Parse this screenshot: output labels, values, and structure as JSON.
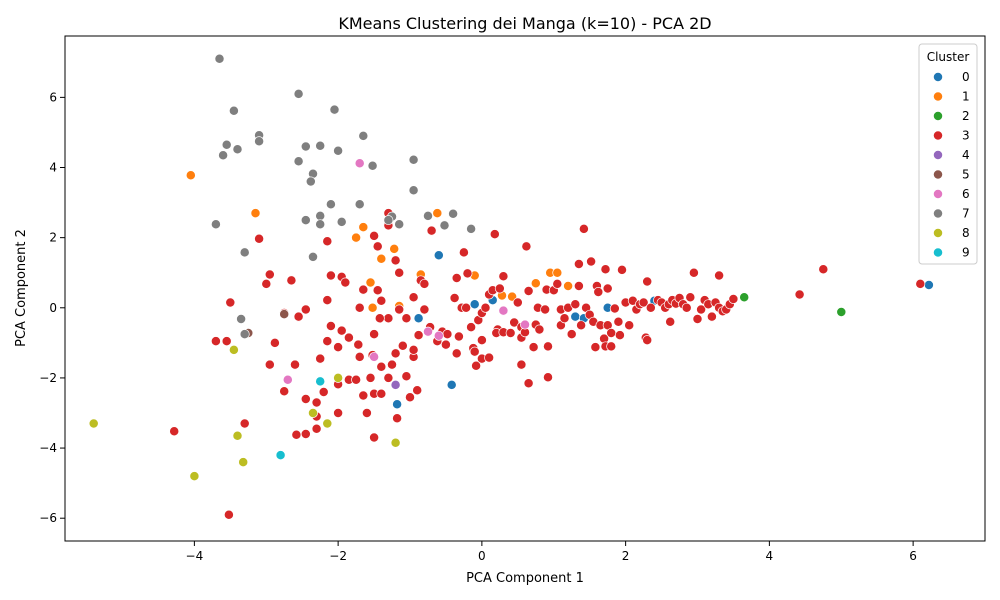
{
  "chart_data": {
    "type": "scatter",
    "title": "KMeans Clustering dei Manga (k=10) - PCA 2D",
    "xlabel": "PCA Component 1",
    "ylabel": "PCA Component 2",
    "xlim": [
      -5.8,
      7.0
    ],
    "ylim": [
      -6.65,
      7.75
    ],
    "xticks": [
      -4,
      -2,
      0,
      2,
      4,
      6
    ],
    "yticks": [
      -6,
      -4,
      -2,
      0,
      2,
      4,
      6
    ],
    "grid": false,
    "legend": {
      "title": "Cluster",
      "placement": "top-right"
    },
    "series": [
      {
        "name": "0",
        "color": "#1f77b4",
        "points": [
          [
            6.22,
            0.65
          ],
          [
            -0.6,
            1.5
          ],
          [
            -0.88,
            -0.3
          ],
          [
            -0.42,
            -2.2
          ],
          [
            -1.18,
            -2.75
          ],
          [
            0.15,
            0.22
          ],
          [
            1.3,
            -0.25
          ],
          [
            1.42,
            -0.3
          ],
          [
            2.4,
            0.2
          ],
          [
            1.75,
            0.0
          ],
          [
            -0.1,
            0.1
          ]
        ]
      },
      {
        "name": "1",
        "color": "#ff7f0e",
        "points": [
          [
            -4.05,
            3.78
          ],
          [
            -3.15,
            2.7
          ],
          [
            -1.65,
            2.3
          ],
          [
            -1.75,
            2.0
          ],
          [
            -1.4,
            1.4
          ],
          [
            -1.22,
            1.68
          ],
          [
            -0.62,
            2.7
          ],
          [
            -0.85,
            0.95
          ],
          [
            -1.55,
            0.72
          ],
          [
            -1.52,
            0.0
          ],
          [
            -1.15,
            0.05
          ],
          [
            -0.1,
            0.92
          ],
          [
            0.28,
            0.35
          ],
          [
            0.42,
            0.32
          ],
          [
            0.95,
            1.0
          ],
          [
            1.05,
            1.0
          ],
          [
            1.2,
            0.62
          ],
          [
            0.75,
            0.7
          ]
        ]
      },
      {
        "name": "2",
        "color": "#2ca02c",
        "points": [
          [
            5.0,
            -0.12
          ],
          [
            3.65,
            0.3
          ],
          [
            2.55,
            0.08
          ],
          [
            1.85,
            -0.02
          ]
        ]
      },
      {
        "name": "3",
        "color": "#d62728",
        "points": [
          [
            -3.1,
            1.97
          ],
          [
            -3.5,
            0.15
          ],
          [
            -2.95,
            0.95
          ],
          [
            -3.0,
            0.68
          ],
          [
            -2.65,
            0.78
          ],
          [
            -2.15,
            1.9
          ],
          [
            -2.1,
            0.92
          ],
          [
            -1.95,
            0.88
          ],
          [
            -1.9,
            0.72
          ],
          [
            -2.15,
            0.22
          ],
          [
            -2.45,
            -0.05
          ],
          [
            -2.55,
            -0.25
          ],
          [
            -2.75,
            -0.15
          ],
          [
            -3.55,
            -0.95
          ],
          [
            -3.7,
            -0.95
          ],
          [
            -2.88,
            -1.0
          ],
          [
            -2.95,
            -1.62
          ],
          [
            -2.6,
            -1.62
          ],
          [
            -2.25,
            -1.45
          ],
          [
            -2.1,
            -0.52
          ],
          [
            -1.95,
            -0.65
          ],
          [
            -2.15,
            -0.95
          ],
          [
            -2.0,
            -1.12
          ],
          [
            -1.85,
            -0.85
          ],
          [
            -1.72,
            -1.05
          ],
          [
            -1.7,
            -1.4
          ],
          [
            -1.85,
            -2.05
          ],
          [
            -1.75,
            -2.05
          ],
          [
            -1.65,
            -2.5
          ],
          [
            -1.5,
            -2.45
          ],
          [
            -1.6,
            -3.0
          ],
          [
            -1.5,
            -3.7
          ],
          [
            -2.0,
            -2.18
          ],
          [
            -2.0,
            -3.0
          ],
          [
            -2.2,
            -2.4
          ],
          [
            -2.3,
            -2.7
          ],
          [
            -2.3,
            -3.1
          ],
          [
            -2.3,
            -3.45
          ],
          [
            -2.45,
            -2.6
          ],
          [
            -2.45,
            -3.6
          ],
          [
            -2.58,
            -3.62
          ],
          [
            -2.75,
            -2.38
          ],
          [
            -3.3,
            -3.3
          ],
          [
            -4.28,
            -3.52
          ],
          [
            -3.52,
            -5.9
          ],
          [
            -1.4,
            -2.45
          ],
          [
            -1.3,
            -2.0
          ],
          [
            -1.25,
            -1.62
          ],
          [
            -1.2,
            -1.3
          ],
          [
            -1.18,
            -3.15
          ],
          [
            -1.0,
            -2.55
          ],
          [
            -0.9,
            -2.35
          ],
          [
            -1.05,
            -1.95
          ],
          [
            -0.95,
            -1.4
          ],
          [
            -0.95,
            -1.2
          ],
          [
            -1.1,
            -1.08
          ],
          [
            -1.15,
            -0.05
          ],
          [
            -1.05,
            -0.3
          ],
          [
            -0.95,
            0.3
          ],
          [
            -0.85,
            0.78
          ],
          [
            -0.8,
            0.68
          ],
          [
            -0.8,
            -0.05
          ],
          [
            -0.88,
            -0.78
          ],
          [
            -0.72,
            -0.55
          ],
          [
            -0.62,
            -0.95
          ],
          [
            -0.55,
            -0.68
          ],
          [
            -0.5,
            -1.05
          ],
          [
            -0.48,
            -0.75
          ],
          [
            -0.35,
            -1.3
          ],
          [
            -0.32,
            -0.82
          ],
          [
            -0.28,
            0.0
          ],
          [
            -0.22,
            0.0
          ],
          [
            -0.38,
            0.28
          ],
          [
            -0.35,
            0.85
          ],
          [
            -0.25,
            1.58
          ],
          [
            -0.2,
            0.98
          ],
          [
            -0.15,
            -0.55
          ],
          [
            -0.12,
            -1.15
          ],
          [
            -0.1,
            -1.25
          ],
          [
            -0.05,
            -0.35
          ],
          [
            0.0,
            -0.15
          ],
          [
            -0.08,
            -1.65
          ],
          [
            0.0,
            -1.45
          ],
          [
            0.0,
            -0.92
          ],
          [
            0.05,
            0.0
          ],
          [
            0.1,
            -1.42
          ],
          [
            0.1,
            0.38
          ],
          [
            0.15,
            0.5
          ],
          [
            0.18,
            2.1
          ],
          [
            0.22,
            -0.62
          ],
          [
            0.2,
            -0.72
          ],
          [
            0.25,
            0.55
          ],
          [
            0.3,
            0.9
          ],
          [
            0.3,
            -0.7
          ],
          [
            0.4,
            -0.72
          ],
          [
            0.45,
            -0.42
          ],
          [
            0.5,
            0.15
          ],
          [
            0.55,
            -0.55
          ],
          [
            0.55,
            -0.85
          ],
          [
            0.55,
            -1.62
          ],
          [
            0.6,
            -0.7
          ],
          [
            0.62,
            1.75
          ],
          [
            0.65,
            0.48
          ],
          [
            0.65,
            -2.15
          ],
          [
            0.72,
            -1.12
          ],
          [
            0.75,
            -0.48
          ],
          [
            0.78,
            0.0
          ],
          [
            0.8,
            -0.62
          ],
          [
            0.88,
            -0.05
          ],
          [
            0.9,
            0.52
          ],
          [
            0.92,
            -1.1
          ],
          [
            0.92,
            -1.98
          ],
          [
            1.0,
            0.5
          ],
          [
            1.05,
            0.68
          ],
          [
            1.1,
            -0.5
          ],
          [
            1.1,
            -0.05
          ],
          [
            1.15,
            -0.3
          ],
          [
            1.2,
            0.0
          ],
          [
            1.25,
            -0.75
          ],
          [
            1.3,
            0.1
          ],
          [
            1.35,
            1.25
          ],
          [
            1.35,
            0.62
          ],
          [
            1.38,
            -0.5
          ],
          [
            1.42,
            2.25
          ],
          [
            1.45,
            0.0
          ],
          [
            1.5,
            -0.2
          ],
          [
            1.52,
            1.32
          ],
          [
            1.55,
            -0.4
          ],
          [
            1.58,
            -1.12
          ],
          [
            1.6,
            0.62
          ],
          [
            1.62,
            0.45
          ],
          [
            1.65,
            -0.5
          ],
          [
            1.7,
            -0.88
          ],
          [
            1.72,
            1.1
          ],
          [
            1.72,
            -1.1
          ],
          [
            1.75,
            0.55
          ],
          [
            1.75,
            -0.5
          ],
          [
            1.8,
            -0.72
          ],
          [
            1.8,
            -1.1
          ],
          [
            1.85,
            -0.02
          ],
          [
            1.9,
            -0.4
          ],
          [
            1.92,
            -0.78
          ],
          [
            1.95,
            1.08
          ],
          [
            2.0,
            0.15
          ],
          [
            2.05,
            -0.5
          ],
          [
            2.1,
            0.2
          ],
          [
            2.15,
            -0.05
          ],
          [
            2.2,
            0.1
          ],
          [
            2.25,
            0.15
          ],
          [
            2.28,
            -0.85
          ],
          [
            2.3,
            0.75
          ],
          [
            2.3,
            -0.92
          ],
          [
            2.35,
            0.0
          ],
          [
            2.45,
            0.22
          ],
          [
            2.5,
            0.15
          ],
          [
            2.55,
            0.0
          ],
          [
            2.6,
            0.1
          ],
          [
            2.62,
            -0.4
          ],
          [
            2.65,
            0.22
          ],
          [
            2.7,
            0.12
          ],
          [
            2.75,
            0.28
          ],
          [
            2.8,
            0.1
          ],
          [
            2.85,
            0.0
          ],
          [
            2.9,
            0.3
          ],
          [
            2.95,
            1.0
          ],
          [
            3.0,
            -0.32
          ],
          [
            3.05,
            -0.05
          ],
          [
            3.1,
            0.22
          ],
          [
            3.15,
            0.1
          ],
          [
            3.2,
            -0.25
          ],
          [
            3.25,
            0.15
          ],
          [
            3.3,
            0.92
          ],
          [
            3.3,
            0.0
          ],
          [
            3.35,
            -0.1
          ],
          [
            3.4,
            -0.05
          ],
          [
            3.45,
            0.1
          ],
          [
            3.5,
            0.25
          ],
          [
            4.42,
            0.38
          ],
          [
            4.75,
            1.1
          ],
          [
            6.1,
            0.68
          ],
          [
            -1.3,
            2.7
          ],
          [
            -1.3,
            2.35
          ],
          [
            -1.5,
            2.05
          ],
          [
            -1.45,
            1.75
          ],
          [
            -1.2,
            1.35
          ],
          [
            -1.15,
            1.0
          ],
          [
            -1.4,
            0.2
          ],
          [
            -1.3,
            -0.3
          ],
          [
            -1.7,
            0.0
          ],
          [
            -1.65,
            0.52
          ],
          [
            -1.45,
            0.5
          ],
          [
            -1.42,
            -0.3
          ],
          [
            -1.5,
            -0.75
          ],
          [
            -1.52,
            -1.35
          ],
          [
            -1.4,
            -1.68
          ],
          [
            -1.55,
            -2.0
          ],
          [
            -0.7,
            2.2
          ]
        ]
      },
      {
        "name": "4",
        "color": "#9467bd",
        "points": [
          [
            -1.2,
            -2.2
          ]
        ]
      },
      {
        "name": "5",
        "color": "#8c564b",
        "points": [
          [
            -2.75,
            -0.18
          ],
          [
            -3.25,
            -0.72
          ]
        ]
      },
      {
        "name": "6",
        "color": "#e377c2",
        "points": [
          [
            -1.7,
            4.12
          ],
          [
            -2.7,
            -2.05
          ],
          [
            -1.5,
            -1.4
          ],
          [
            -0.75,
            -0.68
          ],
          [
            0.3,
            -0.08
          ],
          [
            0.6,
            -0.48
          ],
          [
            -0.6,
            -0.8
          ]
        ]
      },
      {
        "name": "7",
        "color": "#7f7f7f",
        "points": [
          [
            -3.65,
            7.1
          ],
          [
            -2.55,
            6.1
          ],
          [
            -3.45,
            5.62
          ],
          [
            -2.05,
            5.65
          ],
          [
            -3.55,
            4.65
          ],
          [
            -3.1,
            4.92
          ],
          [
            -3.1,
            4.75
          ],
          [
            -3.4,
            4.52
          ],
          [
            -3.6,
            4.35
          ],
          [
            -2.45,
            4.6
          ],
          [
            -2.25,
            4.62
          ],
          [
            -2.0,
            4.48
          ],
          [
            -2.55,
            4.18
          ],
          [
            -1.65,
            4.9
          ],
          [
            -1.52,
            4.05
          ],
          [
            -2.35,
            3.82
          ],
          [
            -2.38,
            3.6
          ],
          [
            -0.95,
            4.22
          ],
          [
            -0.95,
            3.35
          ],
          [
            -1.7,
            2.95
          ],
          [
            -2.1,
            2.95
          ],
          [
            -2.25,
            2.62
          ],
          [
            -2.45,
            2.5
          ],
          [
            -2.25,
            2.38
          ],
          [
            -1.95,
            2.45
          ],
          [
            -1.25,
            2.6
          ],
          [
            -1.3,
            2.5
          ],
          [
            -1.15,
            2.38
          ],
          [
            -0.75,
            2.62
          ],
          [
            -0.4,
            2.68
          ],
          [
            -0.52,
            2.35
          ],
          [
            -0.15,
            2.25
          ],
          [
            -3.7,
            2.38
          ],
          [
            -3.3,
            1.58
          ],
          [
            -2.35,
            1.45
          ],
          [
            -3.35,
            -0.32
          ],
          [
            -3.3,
            -0.75
          ]
        ]
      },
      {
        "name": "8",
        "color": "#bcbd22",
        "points": [
          [
            -5.4,
            -3.3
          ],
          [
            -4.0,
            -4.8
          ],
          [
            -3.45,
            -1.2
          ],
          [
            -3.4,
            -3.65
          ],
          [
            -3.32,
            -4.4
          ],
          [
            -2.0,
            -2.0
          ],
          [
            -2.15,
            -3.3
          ],
          [
            -2.35,
            -3.0
          ],
          [
            -1.2,
            -3.85
          ]
        ]
      },
      {
        "name": "9",
        "color": "#17becf",
        "points": [
          [
            -2.25,
            -2.1
          ],
          [
            -2.8,
            -4.2
          ]
        ]
      }
    ]
  }
}
